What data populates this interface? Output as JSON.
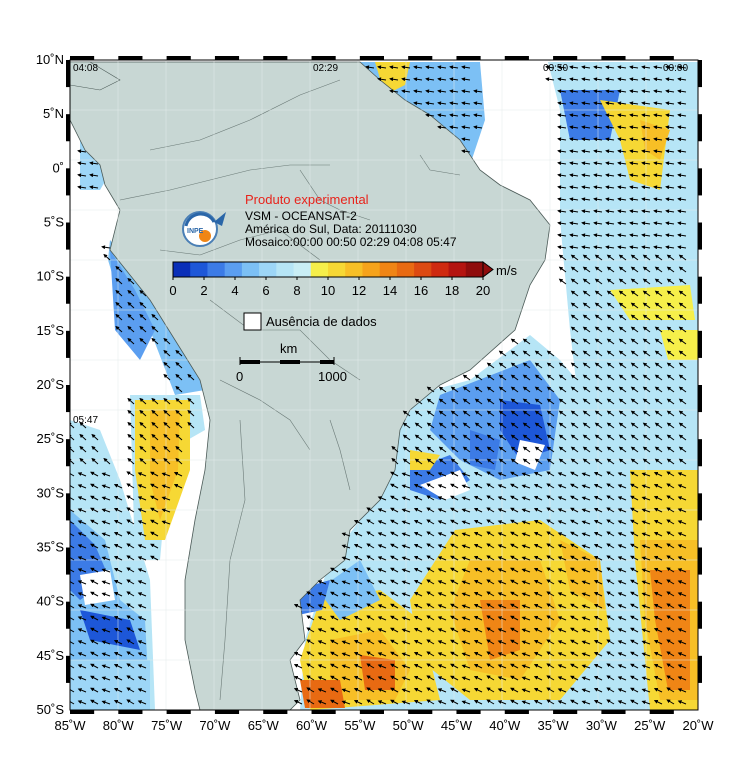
{
  "header": {
    "experimental_label": "Produto experimental",
    "product": "VSM - OCEANSAT-2",
    "region_date": "América do Sul, Data: 20111030",
    "mosaic": "Mosaico:00:00 00:50 02:29 04:08 05:47"
  },
  "logo_text": "INPE",
  "pass_times": [
    "04:08",
    "02:29",
    "00:50",
    "00:00",
    "05:47"
  ],
  "colorbar": {
    "unit": "m/s",
    "ticks": [
      "0",
      "2",
      "4",
      "6",
      "8",
      "10",
      "12",
      "14",
      "16",
      "18",
      "20"
    ],
    "colors": [
      "#0a2fb8",
      "#1d57d8",
      "#3c7be6",
      "#5b9ef0",
      "#7cc0f5",
      "#9dd6f7",
      "#b6e5f6",
      "#c9eef5",
      "#f6ef4a",
      "#f6d834",
      "#f7bf26",
      "#f6a31b",
      "#f08515",
      "#e86a12",
      "#dc4a12",
      "#cf2a10",
      "#b41410",
      "#8f0c0c"
    ]
  },
  "legend": {
    "no_data_label": "Ausência de dados"
  },
  "scale_bar": {
    "unit": "km",
    "start": "0",
    "end": "1000"
  },
  "axes": {
    "lon_ticks": [
      "85˚W",
      "80˚W",
      "75˚W",
      "70˚W",
      "65˚W",
      "60˚W",
      "55˚W",
      "50˚W",
      "45˚W",
      "40˚W",
      "35˚W",
      "30˚W",
      "25˚W",
      "20˚W"
    ],
    "lat_ticks": [
      "10˚N",
      "5˚N",
      "0˚",
      "5˚S",
      "10˚S",
      "15˚S",
      "20˚S",
      "25˚S",
      "30˚S",
      "35˚S",
      "40˚S",
      "45˚S",
      "50˚S"
    ]
  },
  "map_colors": {
    "land": "#c8d7d4",
    "ocean_no_data": "#ffffff",
    "coast": "#4b5a57"
  }
}
